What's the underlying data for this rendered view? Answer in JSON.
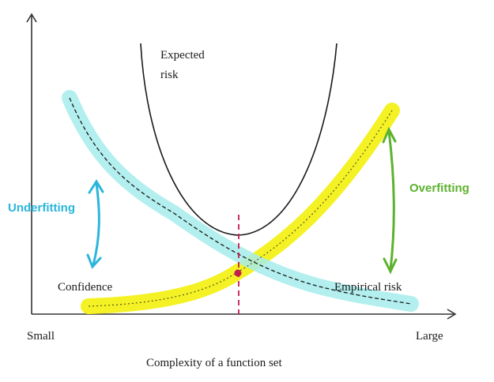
{
  "axes": {
    "x_label": "Complexity of a function set",
    "x_min_label": "Small",
    "x_max_label": "Large"
  },
  "curves": {
    "expected_risk": {
      "label_line1": "Expected",
      "label_line2": "risk",
      "color": "#1a1a1a"
    },
    "confidence": {
      "label": "Confidence",
      "band_color": "#a6ecec"
    },
    "empirical_risk": {
      "label": "Empirical risk",
      "band_color": "#f4f224"
    }
  },
  "annotations": {
    "underfitting": {
      "label": "Underfitting",
      "color": "#2bb5dc"
    },
    "overfitting": {
      "label": "Overfitting",
      "color": "#5cb22e"
    },
    "optimum_marker_color": "#c21e4e"
  }
}
